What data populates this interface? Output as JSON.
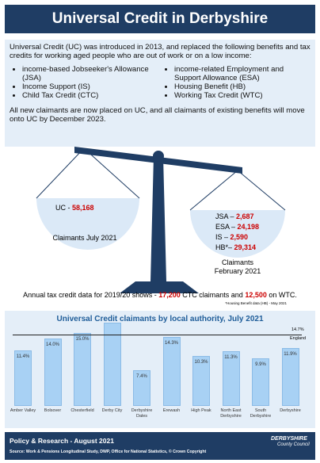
{
  "header": {
    "title": "Universal Credit in Derbyshire"
  },
  "intro": {
    "text": "Universal Credit (UC) was introduced in 2013, and replaced the following benefits and tax credits for working aged people who are out of work or on a low income:",
    "bullets_left": [
      "income-based Jobseeker's Allowance (JSA)",
      "Income Support (IS)",
      "Child Tax Credit (CTC)"
    ],
    "bullets_right": [
      "income-related Employment and Support Allowance (ESA)",
      "Housing Benefit (HB)",
      "Working Tax Credit (WTC)"
    ],
    "closing": "All new claimants are now placed on UC, and all claimants of existing benefits will move onto UC by December 2023."
  },
  "scales": {
    "left": {
      "label": "UC - ",
      "value": "58,168",
      "caption": "Claimants July 2021"
    },
    "right": {
      "items": [
        {
          "label": "JSA – ",
          "value": "2,687"
        },
        {
          "label": "ESA – ",
          "value": "24,198"
        },
        {
          "label": "IS – ",
          "value": "2,590"
        },
        {
          "label": "HB*– ",
          "value": "29,314"
        }
      ],
      "caption_1": "Claimants",
      "caption_2": "February 2021"
    }
  },
  "tax_credit": {
    "text_1": "Annual tax credit data for 2019/20 shows - ",
    "value_1": "17,200",
    "text_2": " CTC claimants and ",
    "value_2": "12,500",
    "text_3": " on WTC.",
    "footnote": "*Housing Benefit data (HB) - May 2021"
  },
  "chart_data": {
    "type": "bar",
    "title": "Universal Credit claimants by local authority, July 2021",
    "categories": [
      "Amber Valley",
      "Bolsover",
      "Chesterfield",
      "Derby City",
      "Derbyshire Dales",
      "Erewash",
      "High Peak",
      "North East Derbyshire",
      "South Derbyshire",
      "Derbyshire"
    ],
    "values": [
      11.4,
      14.0,
      15.0,
      17.2,
      7.4,
      14.3,
      10.3,
      11.3,
      9.9,
      11.9
    ],
    "value_labels": [
      "11.4%",
      "14.0%",
      "15.0%",
      null,
      "7.4%",
      "14.3%",
      "10.3%",
      "11.3%",
      "9.9%",
      "11.9%"
    ],
    "color": "#a8d1f4",
    "reference": {
      "value": 14.7,
      "label": "14.7%",
      "name": "England"
    }
  },
  "footer": {
    "title": "Policy & Research - August 2021",
    "source": "Source: Work & Pensions Longitudinal Study, DWP, Office for National Statistics, © Crown Copyright",
    "logo_1": "DERBYSHIRE",
    "logo_2": "County Council"
  }
}
